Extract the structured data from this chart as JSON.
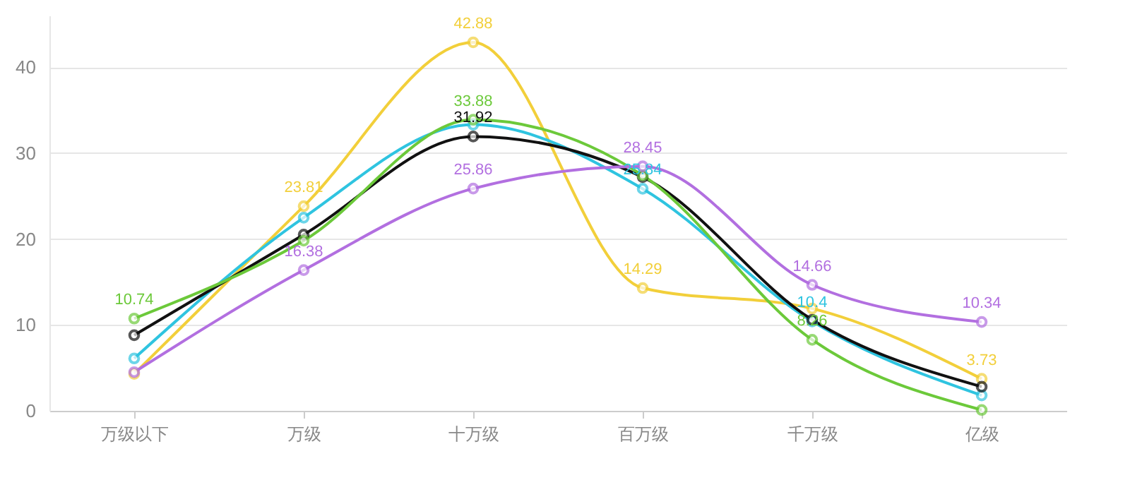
{
  "chart_data": {
    "type": "line",
    "categories": [
      "万级以下",
      "万级",
      "十万级",
      "百万级",
      "千万级",
      "亿级"
    ],
    "series": [
      {
        "color": "#f2cf3a",
        "values": [
          4.3,
          23.81,
          42.88,
          14.29,
          11.9,
          3.73
        ],
        "value_labels": [
          null,
          "23.81",
          "42.88",
          "14.29",
          null,
          "3.73"
        ]
      },
      {
        "color": "#2fc4e0",
        "values": [
          6.1,
          22.48,
          33.3,
          25.84,
          10.4,
          1.8
        ],
        "value_labels": [
          null,
          null,
          null,
          "25.84",
          "10.4",
          null
        ]
      },
      {
        "color": "#111111",
        "values": [
          8.8,
          20.5,
          31.92,
          27.2,
          10.6,
          2.8
        ],
        "value_labels": [
          null,
          null,
          "31.92",
          null,
          null,
          null
        ]
      },
      {
        "color": "#6cc93a",
        "values": [
          10.74,
          19.8,
          33.88,
          27.4,
          8.26,
          0.1
        ],
        "value_labels": [
          "10.74",
          null,
          "33.88",
          null,
          "8.26",
          null
        ]
      },
      {
        "color": "#b26fe0",
        "values": [
          4.5,
          16.38,
          25.86,
          28.45,
          14.66,
          10.34
        ],
        "value_labels": [
          null,
          "16.38",
          "25.86",
          "28.45",
          "14.66",
          "10.34"
        ]
      }
    ],
    "ylim": [
      0,
      46
    ],
    "yticks": [
      0,
      10,
      20,
      30,
      40
    ],
    "grid": "y",
    "marker": "circle",
    "line_style": "solid",
    "legend": false
  }
}
